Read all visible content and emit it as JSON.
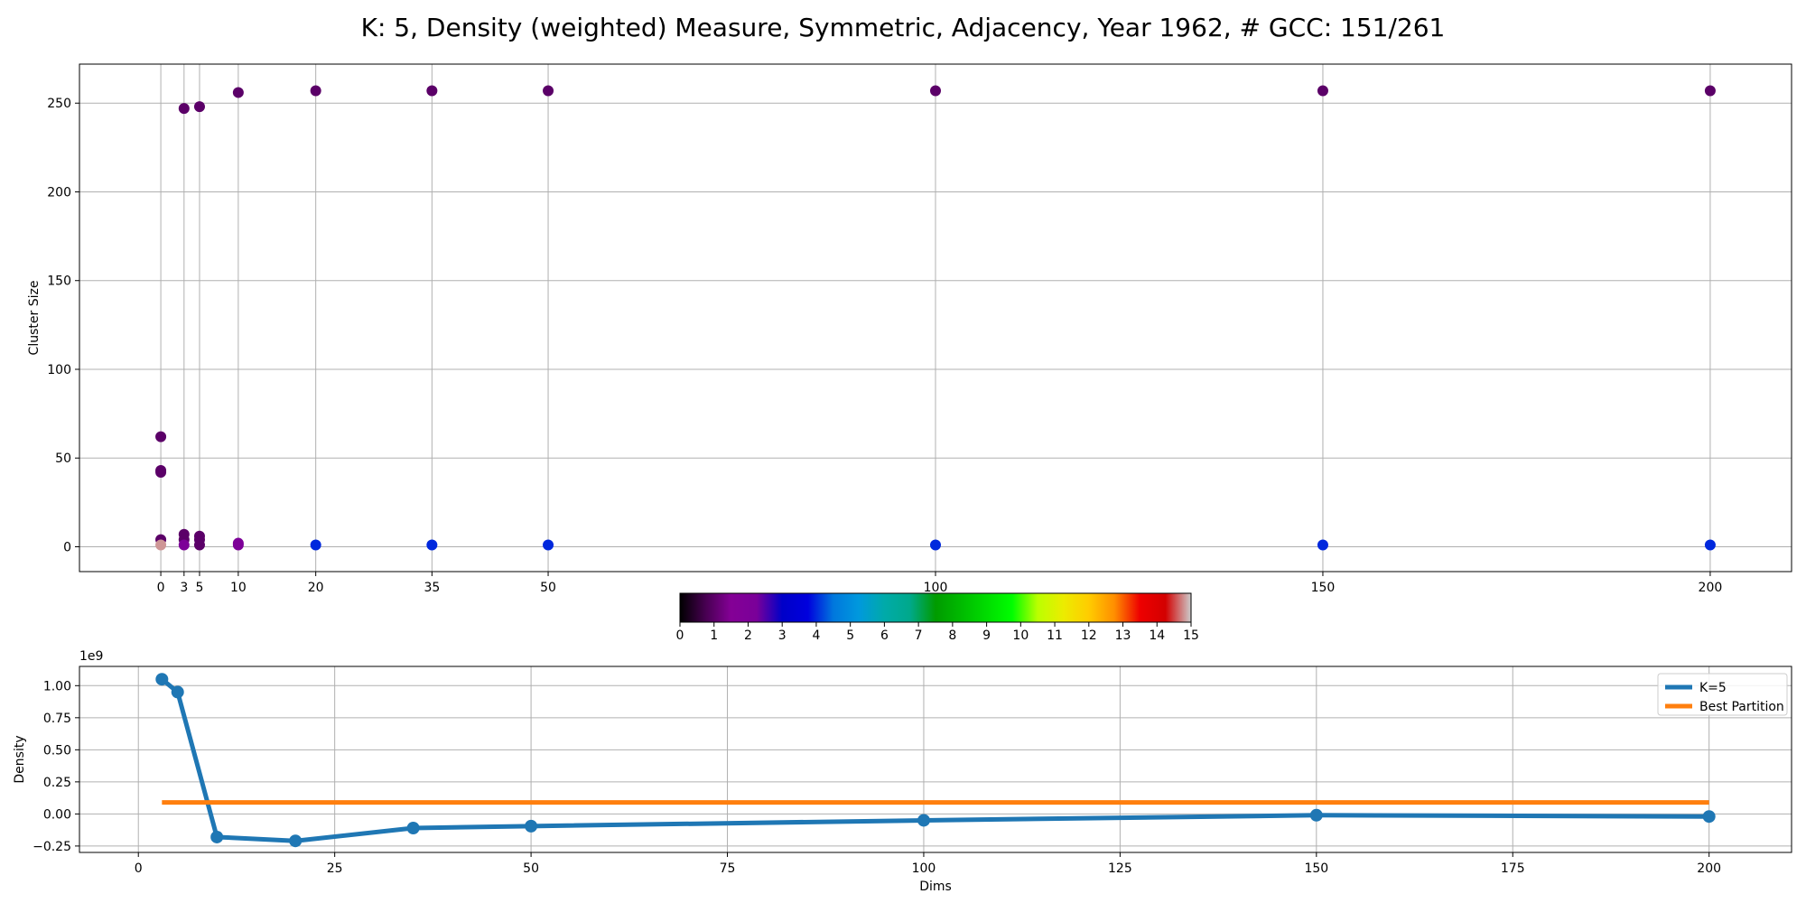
{
  "figure": {
    "title": "K: 5, Density (weighted) Measure, Symmetric, Adjacency, Year 1962, # GCC: 151/261"
  },
  "colors": {
    "grid": "#b0b0b0",
    "axis": "#000000",
    "series_k5": "#1f77b4",
    "series_best": "#ff7f0e"
  },
  "chart_data": [
    {
      "type": "scatter",
      "ylabel": "Cluster Size",
      "xlabel": "",
      "x_ticks": [
        0,
        3,
        5,
        10,
        20,
        35,
        50,
        100,
        150,
        200
      ],
      "y_ticks": [
        0,
        50,
        100,
        150,
        200,
        250
      ],
      "xlim": [
        -10.5,
        210.5
      ],
      "ylim": [
        -14,
        272
      ],
      "grid": true,
      "points": [
        {
          "x": 0,
          "y": 62,
          "c": 1
        },
        {
          "x": 0,
          "y": 43,
          "c": 1
        },
        {
          "x": 0,
          "y": 42,
          "c": 1
        },
        {
          "x": 0,
          "y": 4,
          "c": 1
        },
        {
          "x": 0,
          "y": 1,
          "c": 14.8
        },
        {
          "x": 3,
          "y": 247,
          "c": 1
        },
        {
          "x": 3,
          "y": 7,
          "c": 1
        },
        {
          "x": 3,
          "y": 4,
          "c": 1
        },
        {
          "x": 3,
          "y": 1,
          "c": 2
        },
        {
          "x": 5,
          "y": 248,
          "c": 1
        },
        {
          "x": 5,
          "y": 6,
          "c": 1
        },
        {
          "x": 5,
          "y": 4,
          "c": 1
        },
        {
          "x": 5,
          "y": 1,
          "c": 1
        },
        {
          "x": 10,
          "y": 256,
          "c": 1
        },
        {
          "x": 10,
          "y": 2,
          "c": 2
        },
        {
          "x": 10,
          "y": 1,
          "c": 2
        },
        {
          "x": 20,
          "y": 257,
          "c": 1
        },
        {
          "x": 20,
          "y": 1,
          "c": 4
        },
        {
          "x": 35,
          "y": 257,
          "c": 1
        },
        {
          "x": 35,
          "y": 1,
          "c": 4
        },
        {
          "x": 50,
          "y": 257,
          "c": 1
        },
        {
          "x": 50,
          "y": 1,
          "c": 4
        },
        {
          "x": 100,
          "y": 257,
          "c": 1
        },
        {
          "x": 100,
          "y": 1,
          "c": 4
        },
        {
          "x": 150,
          "y": 257,
          "c": 1
        },
        {
          "x": 150,
          "y": 1,
          "c": 4
        },
        {
          "x": 200,
          "y": 257,
          "c": 1
        },
        {
          "x": 200,
          "y": 1,
          "c": 4
        }
      ]
    },
    {
      "type": "colorbar",
      "range": [
        0,
        15
      ],
      "ticks": [
        0,
        1,
        2,
        3,
        4,
        5,
        6,
        7,
        8,
        9,
        10,
        11,
        12,
        13,
        14,
        15
      ],
      "colormap": "nipy_spectral"
    },
    {
      "type": "line",
      "xlabel": "Dims",
      "ylabel": "Density",
      "offset_text": "1e9",
      "x_ticks": [
        0,
        25,
        50,
        75,
        100,
        125,
        150,
        175,
        200
      ],
      "y_ticks": [
        -0.25,
        0.0,
        0.25,
        0.5,
        0.75,
        1.0
      ],
      "y_tick_labels": [
        "−0.25",
        "0.00",
        "0.25",
        "0.50",
        "0.75",
        "1.00"
      ],
      "xlim": [
        -7.5,
        210.5
      ],
      "ylim": [
        -0.3,
        1.15
      ],
      "grid": true,
      "legend_position": "top-right",
      "series": [
        {
          "name": "K=5",
          "x": [
            3,
            5,
            10,
            20,
            35,
            50,
            100,
            150,
            200
          ],
          "values": [
            1.05,
            0.95,
            -0.18,
            -0.21,
            -0.11,
            -0.095,
            -0.05,
            -0.01,
            -0.02
          ]
        },
        {
          "name": "Best Partition",
          "x": [
            3,
            200
          ],
          "values": [
            0.09,
            0.09
          ]
        }
      ]
    }
  ]
}
